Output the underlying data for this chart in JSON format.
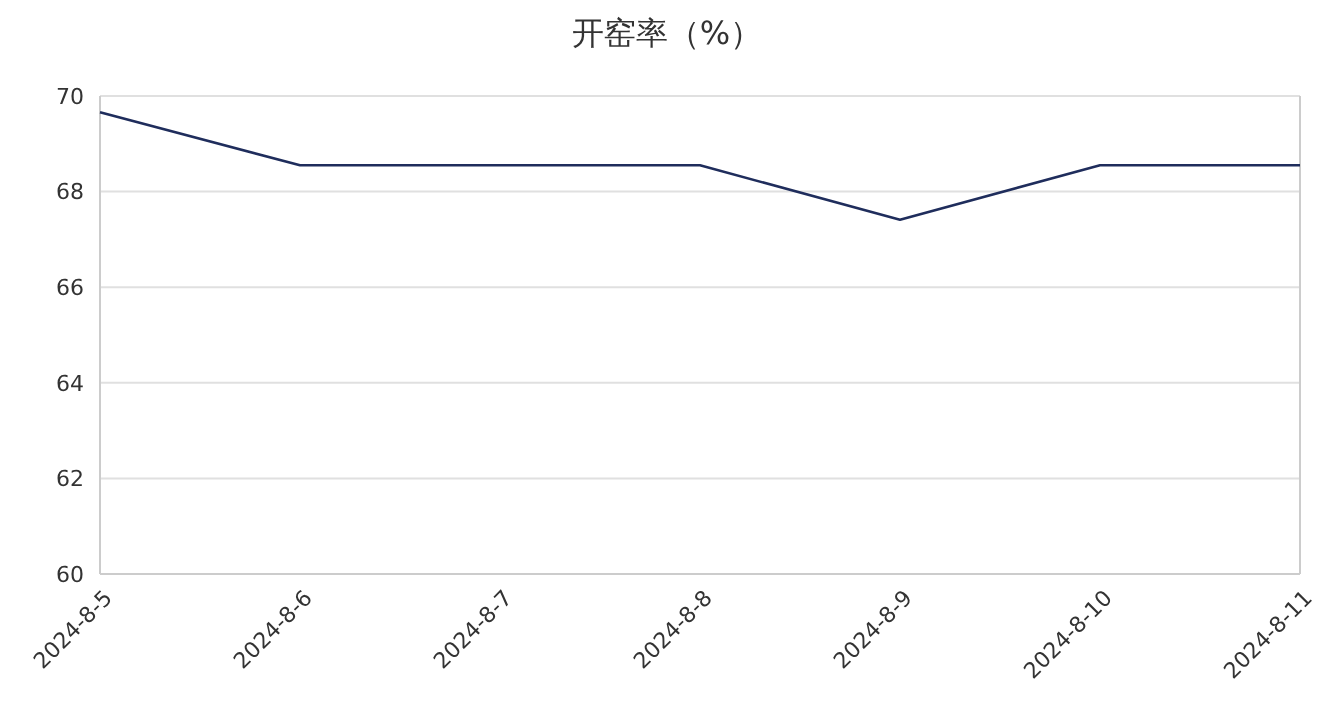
{
  "chart_data": {
    "type": "line",
    "title": "开窑率（%）",
    "categories": [
      "2024-8-5",
      "2024-8-6",
      "2024-8-7",
      "2024-8-8",
      "2024-8-9",
      "2024-8-10",
      "2024-8-11"
    ],
    "series": [
      {
        "color": "#1f2d5c",
        "values": [
          69.66,
          68.55,
          68.55,
          68.55,
          67.41,
          68.55,
          68.55
        ]
      }
    ],
    "ylim": [
      60,
      70
    ],
    "yticks": [
      60,
      62,
      64,
      66,
      68,
      70
    ],
    "grid": "y",
    "marker": "none",
    "line_style": "solid"
  }
}
